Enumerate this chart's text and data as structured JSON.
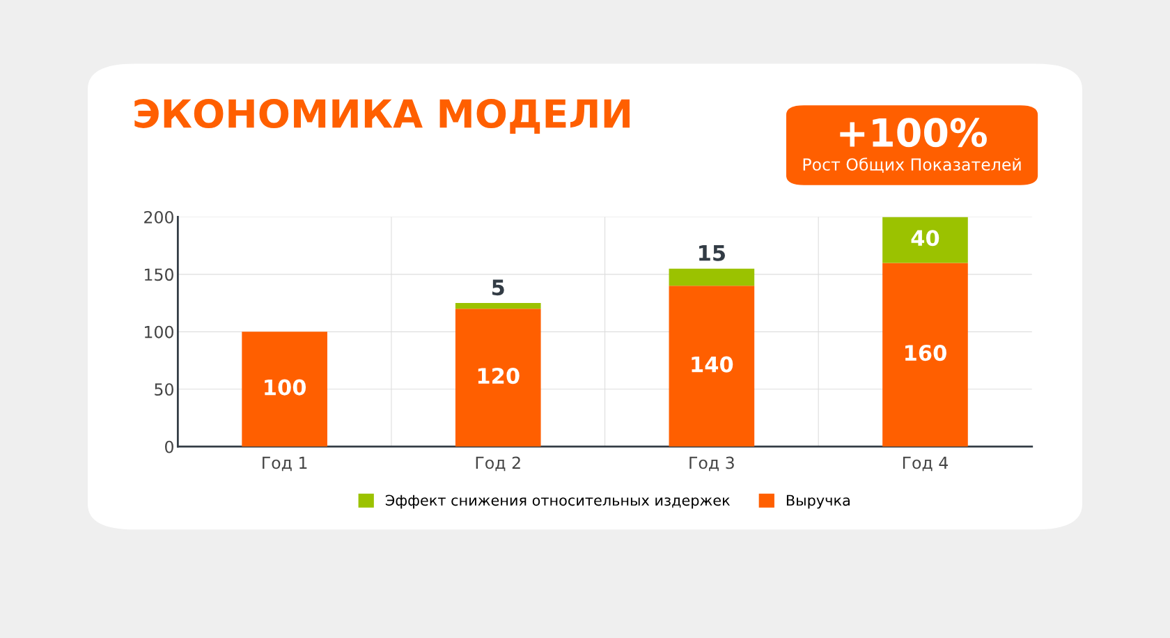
{
  "chart_data": {
    "type": "bar",
    "title": "ЭКОНОМИКА МОДЕЛИ",
    "stacked": true,
    "categories": [
      "Год 1",
      "Год 2",
      "Год 3",
      "Год 4"
    ],
    "series": [
      {
        "name": "Выручка",
        "color": "#ff5f00",
        "values": [
          100,
          120,
          140,
          160
        ],
        "value_labels": [
          "100",
          "120",
          "140",
          "160"
        ]
      },
      {
        "name": "Эффект снижения относительных издержек",
        "color": "#9bc200",
        "values": [
          null,
          5,
          15,
          40
        ],
        "value_labels": [
          null,
          "5",
          "15",
          "40"
        ]
      }
    ],
    "ylim": [
      0,
      200
    ],
    "yticks": [
      0,
      50,
      100,
      150,
      200
    ],
    "grid": true,
    "legend": "bottom",
    "annotations": [
      "+100%",
      "Рост Общих Показателей"
    ]
  }
}
